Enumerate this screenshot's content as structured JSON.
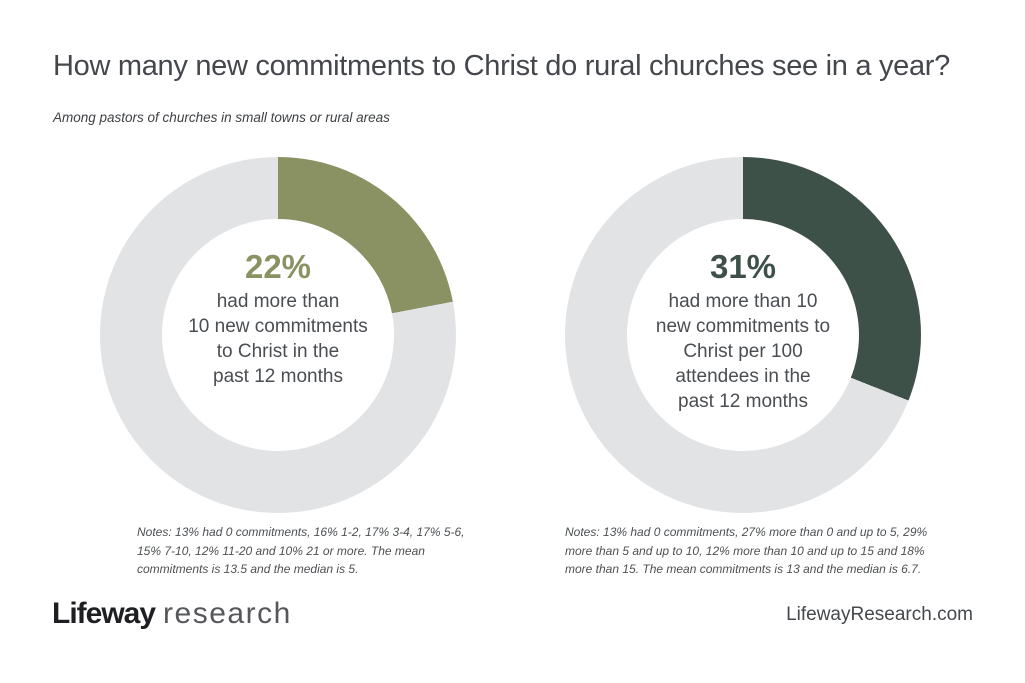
{
  "header": {
    "title": "How many new commitments to Christ do rural churches see in a year?",
    "subtitle": "Among pastors of churches in small towns or rural areas"
  },
  "footer": {
    "logo_primary": "Lifeway",
    "logo_secondary": "research",
    "website": "LifewayResearch.com"
  },
  "colors": {
    "olive": "#8A9162",
    "dark_green": "#3E5149",
    "track_gray": "#E2E3E5",
    "title_text": "#44474B",
    "body_text": "#4A4E52"
  },
  "chart_data": [
    {
      "type": "pie",
      "variant": "donut",
      "start_angle_deg": 0,
      "direction": "clockwise",
      "highlight_pct": 22,
      "value_label": "22%",
      "center_text": "had more than\n10 new commitments\nto Christ in the\npast 12 months",
      "segment_color": "#8A9162",
      "track_color": "#E2E3E5",
      "segments": [
        {
          "label": "had more than 10 new commitments to Christ in the past 12 months",
          "value": 22
        },
        {
          "label": "other",
          "value": 78
        }
      ],
      "distribution": [
        {
          "label": "0 commitments",
          "pct": 13
        },
        {
          "label": "1-2",
          "pct": 16
        },
        {
          "label": "3-4",
          "pct": 17
        },
        {
          "label": "5-6",
          "pct": 17
        },
        {
          "label": "7-10",
          "pct": 15
        },
        {
          "label": "11-20",
          "pct": 12
        },
        {
          "label": "21 or more",
          "pct": 10
        }
      ],
      "mean": 13.5,
      "median": 5,
      "notes": "Notes: 13% had 0 commitments, 16% 1-2, 17% 3-4, 17% 5-6,\n15% 7-10, 12% 11-20 and 10% 21 or more. The mean\ncommitments is 13.5 and the median is 5."
    },
    {
      "type": "pie",
      "variant": "donut",
      "start_angle_deg": 0,
      "direction": "clockwise",
      "highlight_pct": 31,
      "value_label": "31%",
      "center_text": "had more than 10\nnew commitments to\nChrist per 100\nattendees in the\npast 12 months",
      "segment_color": "#3E5149",
      "track_color": "#E2E3E5",
      "segments": [
        {
          "label": "had more than 10 new commitments to Christ per 100 attendees in the past 12 months",
          "value": 31
        },
        {
          "label": "other",
          "value": 69
        }
      ],
      "distribution": [
        {
          "label": "0 commitments",
          "pct": 13
        },
        {
          "label": "more than 0 and up to 5",
          "pct": 27
        },
        {
          "label": "more than 5 and up to 10",
          "pct": 29
        },
        {
          "label": "more than 10 and up to 15",
          "pct": 12
        },
        {
          "label": "more than 15",
          "pct": 18
        }
      ],
      "mean": 13,
      "median": 6.7,
      "notes": "Notes: 13% had 0 commitments, 27% more than 0 and up to 5, 29%\nmore than 5 and up to 10, 12% more than 10 and up to 15 and 18%\nmore than 15. The mean commitments is 13 and the median is 6.7."
    }
  ]
}
